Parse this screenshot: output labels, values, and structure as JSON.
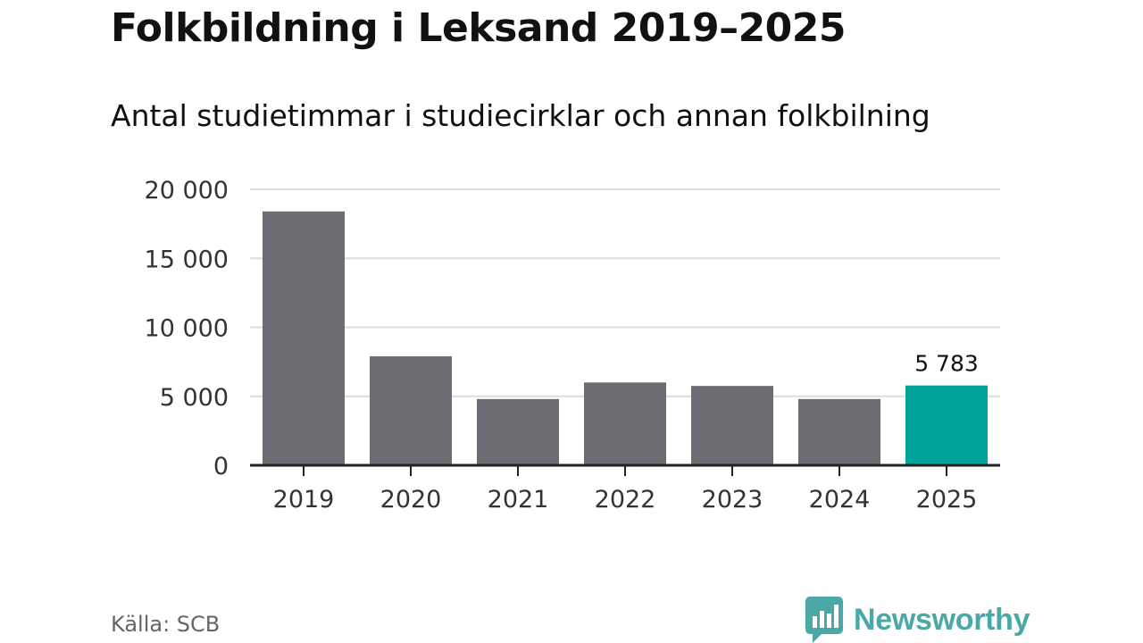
{
  "chart_data": {
    "type": "bar",
    "title": "Folkbildning i Leksand 2019–2025",
    "subtitle": "Antal studietimmar i studiecirklar och annan folkbilning",
    "categories": [
      "2019",
      "2020",
      "2021",
      "2022",
      "2023",
      "2024",
      "2025"
    ],
    "values": [
      18400,
      7900,
      4800,
      6000,
      5750,
      4800,
      5783
    ],
    "ylim": [
      0,
      20000
    ],
    "yticks": [
      0,
      5000,
      10000,
      15000,
      20000
    ],
    "ytick_labels": [
      "0",
      "5 000",
      "10 000",
      "15 000",
      "20 000"
    ],
    "highlight_index": 6,
    "highlight_label": "5 783",
    "grid": true,
    "colors": {
      "bar": "#6d6c72",
      "highlight": "#00a39a",
      "grid": "#dcdcdc",
      "axis": "#222222"
    }
  },
  "footer": {
    "source": "Källa: SCB",
    "brand": "Newsworthy",
    "brand_icon": "newsworthy-logo-icon",
    "brand_color": "#4aa9a6"
  }
}
